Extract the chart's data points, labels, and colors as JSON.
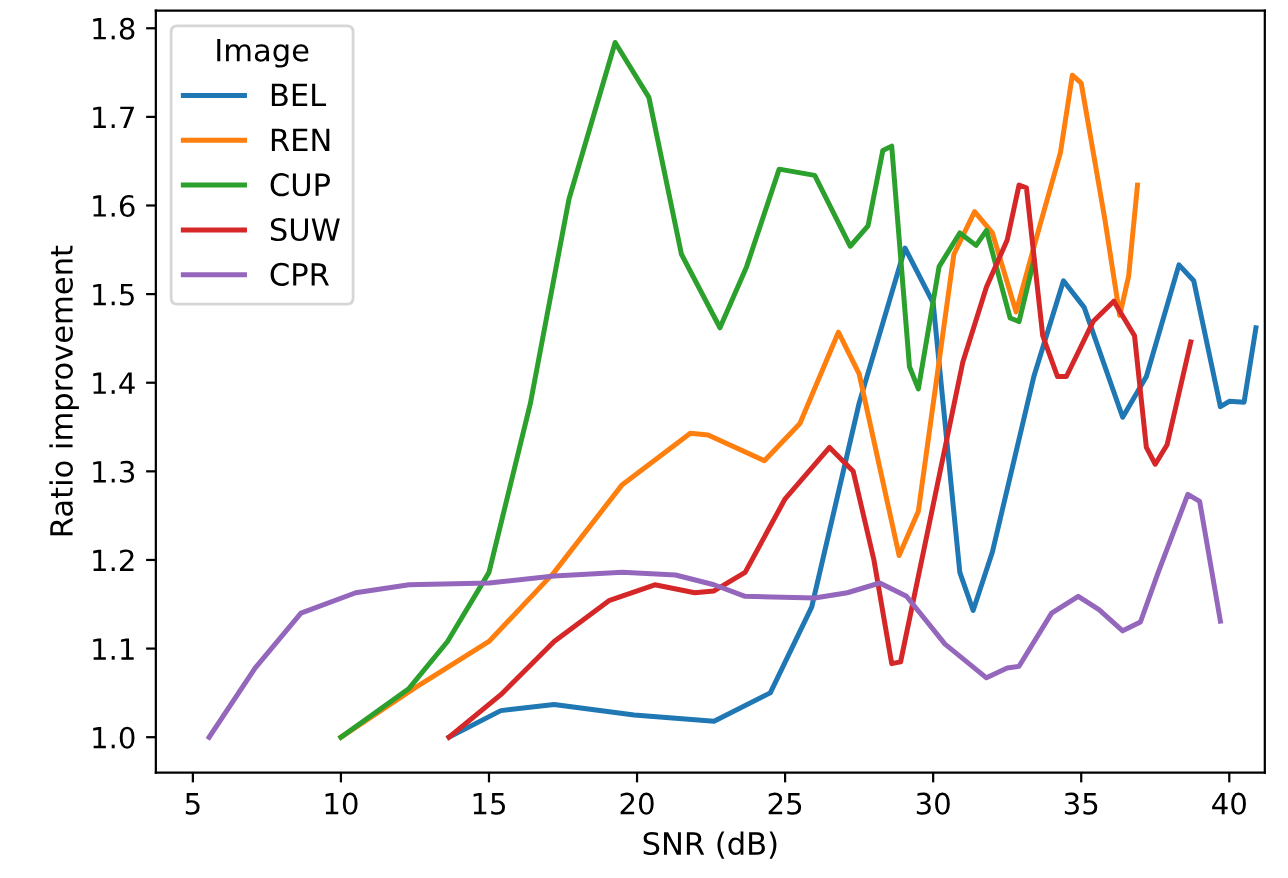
{
  "chart_data": {
    "type": "line",
    "xlabel": "SNR (dB)",
    "ylabel": "Ratio improvement",
    "legend_title": "Image",
    "legend": "top left",
    "grid": false,
    "marker": "none",
    "line_style": "solid",
    "xlim": [
      3.75,
      41.2
    ],
    "ylim": [
      0.96,
      1.82
    ],
    "xticks": [
      5,
      10,
      15,
      20,
      25,
      30,
      35,
      40
    ],
    "yticks": [
      {
        "value": 1.0,
        "label": "1.0"
      },
      1.1,
      1.2,
      1.3,
      1.4,
      1.5,
      1.6,
      1.7,
      1.8
    ],
    "series": [
      {
        "name": "BEL",
        "color": "#1f77b4",
        "x": [
          13.65,
          15.4,
          17.2,
          19.9,
          22.6,
          24.5,
          25.9,
          27.5,
          29.05,
          30.0,
          30.9,
          31.35,
          32.0,
          33.4,
          34.4,
          35.1,
          36.4,
          37.2,
          38.3,
          38.8,
          39.7,
          40.0,
          40.5,
          40.9
        ],
        "values": [
          1.0,
          1.03,
          1.037,
          1.025,
          1.018,
          1.05,
          1.147,
          1.377,
          1.552,
          1.49,
          1.186,
          1.143,
          1.209,
          1.407,
          1.515,
          1.485,
          1.361,
          1.407,
          1.533,
          1.515,
          1.373,
          1.379,
          1.378,
          1.462
        ]
      },
      {
        "name": "REN",
        "color": "#ff7f0e",
        "x": [
          10.0,
          12.7,
          15.0,
          17.2,
          19.5,
          21.8,
          22.4,
          24.3,
          25.5,
          26.8,
          27.5,
          28.85,
          29.5,
          30.7,
          31.4,
          32.0,
          32.8,
          33.6,
          34.3,
          34.7,
          35.0,
          35.8,
          36.3,
          36.6,
          36.9
        ],
        "values": [
          1.0,
          1.06,
          1.108,
          1.186,
          1.285,
          1.343,
          1.341,
          1.312,
          1.354,
          1.457,
          1.41,
          1.205,
          1.255,
          1.545,
          1.593,
          1.569,
          1.48,
          1.577,
          1.66,
          1.747,
          1.738,
          1.584,
          1.476,
          1.52,
          1.623
        ]
      },
      {
        "name": "CUP",
        "color": "#2ca02c",
        "x": [
          10.0,
          12.3,
          13.6,
          15.0,
          16.4,
          17.7,
          19.26,
          20.4,
          21.5,
          22.8,
          23.7,
          24.8,
          26.0,
          27.2,
          27.8,
          28.3,
          28.6,
          29.2,
          29.5,
          30.2,
          30.9,
          31.45,
          31.8,
          32.6,
          32.9,
          33.4
        ],
        "values": [
          1.0,
          1.055,
          1.108,
          1.186,
          1.377,
          1.607,
          1.784,
          1.722,
          1.545,
          1.462,
          1.531,
          1.641,
          1.634,
          1.554,
          1.577,
          1.662,
          1.667,
          1.418,
          1.393,
          1.531,
          1.569,
          1.555,
          1.572,
          1.473,
          1.469,
          1.538
        ]
      },
      {
        "name": "SUW",
        "color": "#d62728",
        "x": [
          13.65,
          15.4,
          17.2,
          19.05,
          20.6,
          21.95,
          22.6,
          23.65,
          25.0,
          26.5,
          27.3,
          28.0,
          28.6,
          28.9,
          30.0,
          31.0,
          31.8,
          32.5,
          32.9,
          33.15,
          33.7,
          34.2,
          34.5,
          35.4,
          36.1,
          36.8,
          37.2,
          37.5,
          37.9,
          38.7
        ],
        "values": [
          1.0,
          1.048,
          1.108,
          1.154,
          1.172,
          1.163,
          1.165,
          1.186,
          1.269,
          1.327,
          1.3,
          1.2,
          1.083,
          1.085,
          1.262,
          1.423,
          1.508,
          1.561,
          1.623,
          1.62,
          1.453,
          1.407,
          1.407,
          1.469,
          1.492,
          1.453,
          1.327,
          1.308,
          1.33,
          1.446
        ]
      },
      {
        "name": "CPR",
        "color": "#9467bd",
        "x": [
          5.55,
          7.1,
          8.65,
          10.5,
          12.3,
          15.0,
          17.2,
          19.5,
          21.3,
          22.6,
          23.65,
          26.0,
          27.1,
          28.2,
          29.1,
          30.4,
          31.8,
          32.5,
          32.9,
          34.0,
          34.9,
          35.6,
          36.4,
          37.0,
          37.6,
          38.6,
          39.0,
          39.7
        ],
        "values": [
          1.0,
          1.078,
          1.14,
          1.163,
          1.172,
          1.174,
          1.182,
          1.186,
          1.183,
          1.172,
          1.159,
          1.157,
          1.163,
          1.174,
          1.159,
          1.105,
          1.067,
          1.078,
          1.08,
          1.14,
          1.159,
          1.144,
          1.12,
          1.13,
          1.186,
          1.274,
          1.266,
          1.131
        ]
      }
    ]
  }
}
